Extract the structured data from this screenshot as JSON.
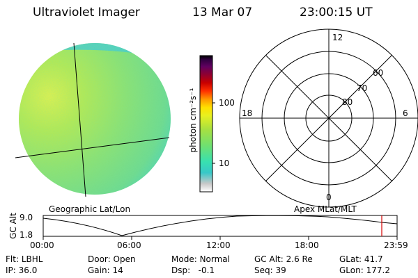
{
  "header": {
    "instrument": "Ultraviolet Imager",
    "date": "13 Mar 07",
    "time": "23:00:15 UT"
  },
  "colorbar": {
    "unit_label": "photon cm⁻²s⁻¹",
    "ticks": [
      "100",
      "10"
    ],
    "colors": [
      "#ffffff",
      "#c8c8c8",
      "#38c8c8",
      "#38e0b0",
      "#70e070",
      "#a8e040",
      "#e8f020",
      "#ffe000",
      "#ff9800",
      "#ff3000",
      "#c80000",
      "#900030",
      "#600060",
      "#300040",
      "#000000"
    ]
  },
  "left_panel": {
    "caption": "Geographic Lat/Lon"
  },
  "right_panel": {
    "caption": "Apex MLat/MLT",
    "mlt_labels": {
      "top": "12",
      "bottom": "0",
      "left": "18",
      "right": "6"
    },
    "mlat_labels": [
      "60",
      "70",
      "80"
    ]
  },
  "altitude_plot": {
    "ylabel": "GC Alt",
    "yticks": [
      "9.0",
      "1.8"
    ],
    "xticks": [
      "00:00",
      "06:00",
      "12:00",
      "18:00",
      "23:59"
    ],
    "marker_color": "#d40000"
  },
  "info": {
    "row1": [
      {
        "label": "Flt:",
        "value": "LBHL"
      },
      {
        "label": "Door:",
        "value": "Open"
      },
      {
        "label": "Mode:",
        "value": "Normal"
      },
      {
        "label": "GC Alt:",
        "value": "2.6 Re"
      },
      {
        "label": "GLat:",
        "value": "41.7"
      }
    ],
    "row2": [
      {
        "label": "IP:",
        "value": "36.0"
      },
      {
        "label": "Gain:",
        "value": "14"
      },
      {
        "label": "Dsp:",
        "value": "-0.1"
      },
      {
        "label": "Seq:",
        "value": "39"
      },
      {
        "label": "GLon:",
        "value": "177.2"
      }
    ]
  }
}
